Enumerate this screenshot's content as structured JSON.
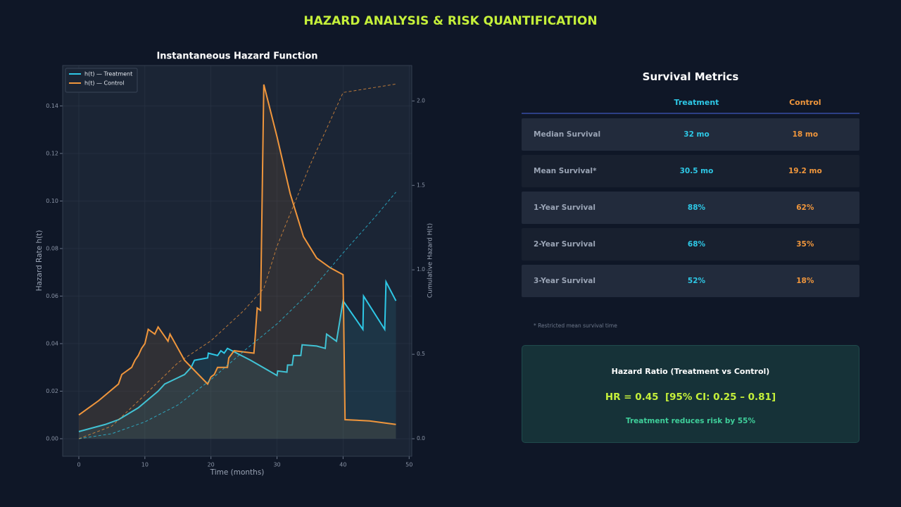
{
  "header": {
    "title": "HAZARD ANALYSIS & RISK QUANTIFICATION"
  },
  "chart_data": {
    "type": "line",
    "title": "Instantaneous Hazard Function",
    "x_label": "Time (months)",
    "y_label": "Hazard Rate h(t)",
    "y2_label": "Cumulative Hazard H(t)",
    "xlim": [
      -2.45,
      50.4
    ],
    "ylim": [
      -0.0074,
      0.157
    ],
    "y2lim": [
      -0.104,
      2.21
    ],
    "xticks": [
      0,
      10,
      20,
      30,
      40,
      50
    ],
    "yticks": [
      {
        "value": 0,
        "label": "0.00"
      },
      {
        "value": 0.02,
        "label": "0.02"
      },
      {
        "value": 0.04,
        "label": "0.04"
      },
      {
        "value": 0.06,
        "label": "0.06"
      },
      {
        "value": 0.08,
        "label": "0.08"
      },
      {
        "value": 0.1,
        "label": "0.10"
      },
      {
        "value": 0.12,
        "label": "0.12"
      },
      {
        "value": 0.14,
        "label": "0.14"
      }
    ],
    "y2ticks": [
      {
        "value": 0,
        "label": "0.0"
      },
      {
        "value": 0.5,
        "label": "0.5"
      },
      {
        "value": 1,
        "label": "1.0"
      },
      {
        "value": 1.5,
        "label": "1.5"
      },
      {
        "value": 2,
        "label": "2.0"
      }
    ],
    "grid": true,
    "legend": "upper left",
    "series": [
      {
        "name": "h(t) — Treatment",
        "color": "#2ec8e6",
        "x": [
          0,
          4,
          6,
          9,
          12,
          13,
          16,
          17,
          17.5,
          19.5,
          19.6,
          21,
          21.5,
          22,
          22.5,
          26,
          30,
          30.1,
          31.5,
          31.6,
          32.3,
          32.5,
          33.6,
          33.8,
          36,
          37.3,
          37.5,
          39,
          40,
          43,
          43.1,
          46.3,
          46.5,
          48
        ],
        "values": [
          0.003,
          0.006,
          0.008,
          0.013,
          0.02,
          0.023,
          0.027,
          0.03,
          0.033,
          0.034,
          0.036,
          0.035,
          0.037,
          0.036,
          0.038,
          0.033,
          0.0266,
          0.0285,
          0.028,
          0.031,
          0.031,
          0.035,
          0.035,
          0.0395,
          0.039,
          0.038,
          0.044,
          0.041,
          0.058,
          0.046,
          0.06,
          0.046,
          0.066,
          0.058
        ]
      },
      {
        "name": "h(t) — Control",
        "color": "#f0963c",
        "x": [
          0,
          3,
          6,
          6.5,
          8,
          8.5,
          9,
          9.5,
          10,
          10.5,
          11.5,
          12,
          13.5,
          13.8,
          16,
          19.5,
          20,
          20.5,
          21,
          22.5,
          22.7,
          23.5,
          26.5,
          26.7,
          27,
          27.5,
          28,
          30,
          32,
          34,
          36,
          38,
          40,
          40.3,
          44,
          48
        ],
        "values": [
          0.01,
          0.016,
          0.023,
          0.027,
          0.03,
          0.033,
          0.035,
          0.038,
          0.04,
          0.046,
          0.044,
          0.047,
          0.041,
          0.044,
          0.033,
          0.023,
          0.026,
          0.027,
          0.03,
          0.03,
          0.034,
          0.037,
          0.036,
          0.043,
          0.055,
          0.054,
          0.149,
          0.127,
          0.103,
          0.085,
          0.076,
          0.072,
          0.069,
          0.008,
          0.0075,
          0.006
        ]
      },
      {
        "color": "#2ec8e6",
        "axis": "y2",
        "dashed": true,
        "x": [
          0,
          5,
          10,
          15,
          20,
          25,
          30,
          35,
          40,
          45,
          48
        ],
        "values": [
          0,
          0.03,
          0.1,
          0.2,
          0.35,
          0.52,
          0.68,
          0.87,
          1.1,
          1.32,
          1.46
        ]
      },
      {
        "color": "#f0963c",
        "axis": "y2",
        "dashed": true,
        "x": [
          0,
          5,
          10,
          15,
          20,
          25,
          28,
          30,
          35,
          40,
          48
        ],
        "values": [
          0,
          0.075,
          0.26,
          0.45,
          0.58,
          0.76,
          0.89,
          1.14,
          1.62,
          2.05,
          2.1
        ]
      }
    ]
  },
  "table": {
    "title": "Survival Metrics",
    "columns": [
      "Treatment",
      "Control"
    ],
    "rows": [
      [
        "Median Survival",
        "32 mo",
        "18 mo"
      ],
      [
        "Mean Survival*",
        "30.5 mo",
        "19.2 mo"
      ],
      [
        "1-Year Survival",
        "88%",
        "62%"
      ],
      [
        "2-Year Survival",
        "68%",
        "35%"
      ],
      [
        "3-Year Survival",
        "52%",
        "18%"
      ]
    ],
    "footnote": "* Restricted mean survival time"
  },
  "hazard_ratio": {
    "title": "Hazard Ratio (Treatment vs Control)",
    "value": "HR = 0.45  [95% CI: 0.25 – 0.81]",
    "note": "Treatment reduces risk by 55%"
  }
}
